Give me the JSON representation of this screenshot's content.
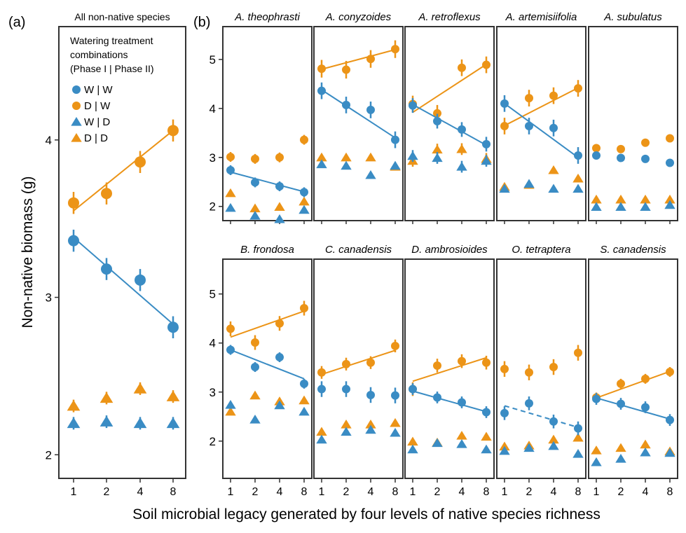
{
  "colors": {
    "W | W": "#3a8cc4",
    "D | W": "#ec9417",
    "W | D": "#3a8cc4",
    "D | D": "#ec9417"
  },
  "labels": {
    "panel_a": "(a)",
    "panel_b": "(b)",
    "ylabel": "Non-native biomass (g)",
    "xlabel": "Soil microbial legacy generated by four levels of native species richness"
  },
  "legend": {
    "title": [
      "Watering treatment",
      "combinations",
      "(Phase I | Phase II)"
    ],
    "entries": [
      {
        "name": "W | W",
        "marker": "circle"
      },
      {
        "name": "D | W",
        "marker": "circle"
      },
      {
        "name": "W | D",
        "marker": "triangle"
      },
      {
        "name": "D | D",
        "marker": "triangle"
      }
    ]
  },
  "chart_data": [
    {
      "type": "scatter",
      "panel": "a",
      "title": "All non-native species",
      "categories": [
        "1",
        "2",
        "4",
        "8"
      ],
      "ylim": [
        1.85,
        4.72
      ],
      "yticks": [
        "2",
        "3",
        "4"
      ],
      "series": [
        {
          "name": "W | W",
          "values": [
            3.36,
            3.18,
            3.11,
            2.81
          ],
          "err": 0.07,
          "fit": [
            3.38,
            2.83
          ]
        },
        {
          "name": "D | W",
          "values": [
            3.6,
            3.66,
            3.86,
            4.06
          ],
          "err": 0.07,
          "fit": [
            3.55,
            4.06
          ]
        },
        {
          "name": "W | D",
          "values": [
            2.2,
            2.21,
            2.2,
            2.2
          ],
          "err": 0.04
        },
        {
          "name": "D | D",
          "values": [
            2.31,
            2.36,
            2.42,
            2.37
          ],
          "err": 0.04
        }
      ]
    },
    {
      "type": "scatter",
      "panel": "b",
      "title": "A. theophrasti",
      "categories": [
        "1",
        "2",
        "4",
        "8"
      ],
      "ylim": [
        1.71,
        5.67
      ],
      "yticks": [
        "2",
        "3",
        "4",
        "5"
      ],
      "series": [
        {
          "name": "W | W",
          "values": [
            2.74,
            2.49,
            2.41,
            2.29
          ],
          "err": 0.1,
          "fit": [
            2.7,
            2.3
          ]
        },
        {
          "name": "D | W",
          "values": [
            3.01,
            2.97,
            3.0,
            3.36
          ],
          "err": 0.1
        },
        {
          "name": "W | D",
          "values": [
            1.97,
            1.81,
            1.74,
            1.93
          ],
          "err": 0.05
        },
        {
          "name": "D | D",
          "values": [
            2.27,
            1.96,
            1.99,
            2.1
          ],
          "err": 0.05
        }
      ]
    },
    {
      "type": "scatter",
      "panel": "b",
      "title": "A. conyzoides",
      "categories": [
        "1",
        "2",
        "4",
        "8"
      ],
      "ylim": [
        1.71,
        5.67
      ],
      "series": [
        {
          "name": "W | W",
          "values": [
            4.36,
            4.07,
            3.97,
            3.36
          ],
          "err": 0.17,
          "fit": [
            4.38,
            3.4
          ]
        },
        {
          "name": "D | W",
          "values": [
            4.81,
            4.79,
            5.01,
            5.21
          ],
          "err": 0.18,
          "fit": [
            4.8,
            5.2
          ]
        },
        {
          "name": "W | D",
          "values": [
            2.86,
            2.83,
            2.64,
            2.83
          ],
          "err": 0.06
        },
        {
          "name": "D | D",
          "values": [
            3.0,
            3.0,
            3.0,
            2.81
          ],
          "err": 0.06
        }
      ]
    },
    {
      "type": "scatter",
      "panel": "b",
      "title": "A. retroflexus",
      "categories": [
        "1",
        "2",
        "4",
        "8"
      ],
      "ylim": [
        1.71,
        5.67
      ],
      "series": [
        {
          "name": "W | W",
          "values": [
            4.06,
            3.74,
            3.57,
            3.27
          ],
          "err": 0.15,
          "fit": [
            4.08,
            3.25
          ]
        },
        {
          "name": "D | W",
          "values": [
            4.09,
            3.9,
            4.83,
            4.89
          ],
          "err": 0.17,
          "fit": [
            3.92,
            4.9
          ]
        },
        {
          "name": "W | D",
          "values": [
            3.03,
            2.99,
            2.81,
            2.93
          ],
          "err": 0.12
        },
        {
          "name": "D | D",
          "values": [
            2.93,
            3.16,
            3.17,
            2.97
          ],
          "err": 0.12
        }
      ]
    },
    {
      "type": "scatter",
      "panel": "b",
      "title": "A. artemisiifolia",
      "categories": [
        "1",
        "2",
        "4",
        "8"
      ],
      "ylim": [
        1.71,
        5.67
      ],
      "series": [
        {
          "name": "W | W",
          "values": [
            4.1,
            3.64,
            3.6,
            3.04
          ],
          "err": 0.17,
          "fit": [
            4.1,
            3.0
          ]
        },
        {
          "name": "D | W",
          "values": [
            3.64,
            4.21,
            4.26,
            4.41
          ],
          "err": 0.17,
          "fit": [
            3.65,
            4.42
          ]
        },
        {
          "name": "W | D",
          "values": [
            2.36,
            2.46,
            2.36,
            2.36
          ],
          "err": 0.06
        },
        {
          "name": "D | D",
          "values": [
            2.4,
            2.44,
            2.74,
            2.57
          ],
          "err": 0.05
        }
      ]
    },
    {
      "type": "scatter",
      "panel": "b",
      "title": "A. subulatus",
      "categories": [
        "1",
        "2",
        "4",
        "8"
      ],
      "ylim": [
        1.71,
        5.67
      ],
      "series": [
        {
          "name": "W | W",
          "values": [
            3.04,
            2.99,
            2.97,
            2.89
          ],
          "err": 0.07
        },
        {
          "name": "D | W",
          "values": [
            3.19,
            3.17,
            3.3,
            3.39
          ],
          "err": 0.07
        },
        {
          "name": "W | D",
          "values": [
            1.99,
            1.99,
            1.99,
            2.03
          ],
          "err": 0.04
        },
        {
          "name": "D | D",
          "values": [
            2.14,
            2.14,
            2.14,
            2.14
          ],
          "err": 0.04
        }
      ]
    },
    {
      "type": "scatter",
      "panel": "b",
      "title": "B. frondosa",
      "categories": [
        "1",
        "2",
        "4",
        "8"
      ],
      "ylim": [
        1.24,
        5.71
      ],
      "yticks": [
        "2",
        "3",
        "4",
        "5"
      ],
      "series": [
        {
          "name": "W | W",
          "values": [
            3.86,
            3.51,
            3.71,
            3.17
          ],
          "err": 0.1,
          "fit": [
            3.86,
            3.27
          ]
        },
        {
          "name": "D | W",
          "values": [
            4.29,
            4.01,
            4.4,
            4.71
          ],
          "err": 0.15,
          "fit": [
            4.12,
            4.65
          ]
        },
        {
          "name": "W | D",
          "values": [
            2.74,
            2.44,
            2.73,
            2.6
          ],
          "err": 0.07
        },
        {
          "name": "D | D",
          "values": [
            2.6,
            2.93,
            2.81,
            2.83
          ],
          "err": 0.07
        }
      ]
    },
    {
      "type": "scatter",
      "panel": "b",
      "title": "C. canadensis",
      "categories": [
        "1",
        "2",
        "4",
        "8"
      ],
      "ylim": [
        1.24,
        5.71
      ],
      "series": [
        {
          "name": "W | W",
          "values": [
            3.06,
            3.06,
            2.94,
            2.93
          ],
          "err": 0.16
        },
        {
          "name": "D | W",
          "values": [
            3.4,
            3.57,
            3.6,
            3.94
          ],
          "err": 0.13,
          "fit": [
            3.36,
            3.85
          ]
        },
        {
          "name": "W | D",
          "values": [
            2.03,
            2.19,
            2.23,
            2.17
          ],
          "err": 0.05
        },
        {
          "name": "D | D",
          "values": [
            2.19,
            2.34,
            2.34,
            2.37
          ],
          "err": 0.05
        }
      ]
    },
    {
      "type": "scatter",
      "panel": "b",
      "title": "D. ambrosioides",
      "categories": [
        "1",
        "2",
        "4",
        "8"
      ],
      "ylim": [
        1.24,
        5.71
      ],
      "series": [
        {
          "name": "W | W",
          "values": [
            3.06,
            2.89,
            2.79,
            2.59
          ],
          "err": 0.12,
          "fit": [
            3.02,
            2.6
          ]
        },
        {
          "name": "D | W",
          "values": [
            3.06,
            3.54,
            3.63,
            3.6
          ],
          "err": 0.14,
          "fit": [
            3.22,
            3.7
          ]
        },
        {
          "name": "W | D",
          "values": [
            1.83,
            1.96,
            1.94,
            1.83
          ],
          "err": 0.04
        },
        {
          "name": "D | D",
          "values": [
            1.99,
            1.97,
            2.11,
            2.09
          ],
          "err": 0.04
        }
      ]
    },
    {
      "type": "scatter",
      "panel": "b",
      "title": "O. tetraptera",
      "categories": [
        "1",
        "2",
        "4",
        "8"
      ],
      "ylim": [
        1.24,
        5.71
      ],
      "series": [
        {
          "name": "W | W",
          "values": [
            2.57,
            2.77,
            2.4,
            2.26
          ],
          "err": 0.14,
          "fit": [
            2.72,
            2.28
          ],
          "fit_dashed": true
        },
        {
          "name": "D | W",
          "values": [
            3.47,
            3.4,
            3.51,
            3.8
          ],
          "err": 0.16
        },
        {
          "name": "W | D",
          "values": [
            1.8,
            1.86,
            1.9,
            1.74
          ],
          "err": 0.05
        },
        {
          "name": "D | D",
          "values": [
            1.89,
            1.91,
            2.03,
            2.07
          ],
          "err": 0.05
        }
      ]
    },
    {
      "type": "scatter",
      "panel": "b",
      "title": "S. canadensis",
      "categories": [
        "1",
        "2",
        "4",
        "8"
      ],
      "ylim": [
        1.24,
        5.71
      ],
      "series": [
        {
          "name": "W | W",
          "values": [
            2.86,
            2.76,
            2.69,
            2.43
          ],
          "err": 0.12,
          "fit": [
            2.88,
            2.45
          ]
        },
        {
          "name": "D | W",
          "values": [
            2.89,
            3.17,
            3.27,
            3.41
          ],
          "err": 0.1,
          "fit": [
            2.88,
            3.42
          ]
        },
        {
          "name": "W | D",
          "values": [
            1.57,
            1.64,
            1.77,
            1.76
          ],
          "err": 0.04
        },
        {
          "name": "D | D",
          "values": [
            1.81,
            1.86,
            1.93,
            1.79
          ],
          "err": 0.04
        }
      ]
    }
  ]
}
